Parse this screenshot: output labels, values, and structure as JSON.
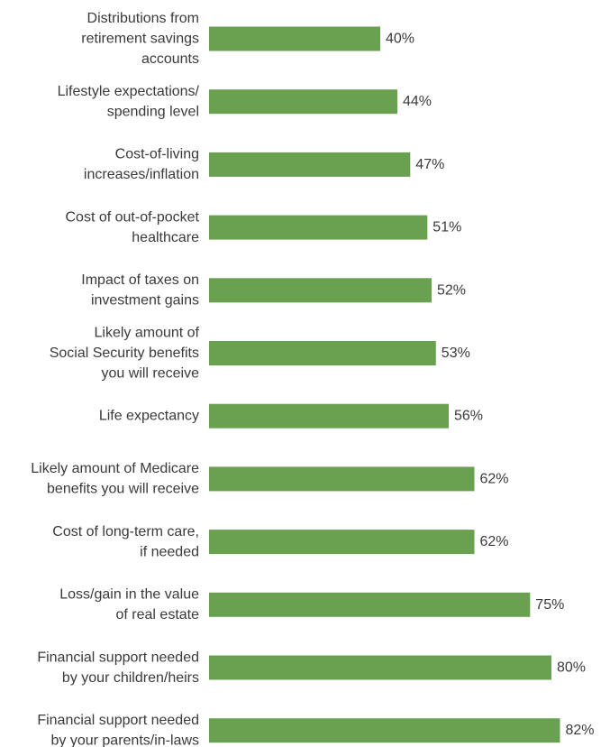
{
  "chart_data": {
    "type": "bar",
    "orientation": "horizontal",
    "title": "",
    "xlabel": "",
    "ylabel": "",
    "bar_color": "#6aa151",
    "grid": false,
    "legend": "none",
    "xlim": [
      0,
      100
    ],
    "unit": "%",
    "categories": [
      [
        "Distributions from",
        "retirement savings",
        "accounts"
      ],
      [
        "Lifestyle expectations/",
        "spending level"
      ],
      [
        "Cost-of-living",
        "increases/inflation"
      ],
      [
        "Cost of out-of-pocket",
        "healthcare"
      ],
      [
        "Impact of taxes on",
        "investment gains"
      ],
      [
        "Likely amount of",
        "Social Security benefits",
        "you will receive"
      ],
      [
        "Life expectancy"
      ],
      [
        "Likely amount of Medicare",
        "benefits you will receive"
      ],
      [
        "Cost of long-term care,",
        "if needed"
      ],
      [
        "Loss/gain in the value",
        "of real estate"
      ],
      [
        "Financial support needed",
        "by your children/heirs"
      ],
      [
        "Financial support needed",
        "by your parents/in-laws"
      ]
    ],
    "values": [
      40,
      44,
      47,
      51,
      52,
      53,
      56,
      62,
      62,
      75,
      80,
      82
    ],
    "value_labels": [
      "40%",
      "44%",
      "47%",
      "51%",
      "52%",
      "53%",
      "56%",
      "62%",
      "62%",
      "75%",
      "80%",
      "82%"
    ]
  }
}
